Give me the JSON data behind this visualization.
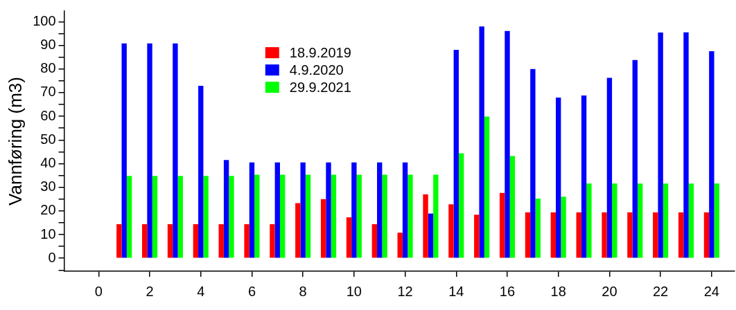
{
  "chart_data": {
    "type": "bar",
    "ylabel": "Vannføring (m3)",
    "x": [
      1,
      2,
      3,
      4,
      5,
      6,
      7,
      8,
      9,
      10,
      11,
      12,
      13,
      14,
      15,
      16,
      17,
      18,
      19,
      20,
      21,
      22,
      23,
      24
    ],
    "series": [
      {
        "name": "18.9.2019",
        "color": "#ff0000",
        "values": [
          14.4,
          14.4,
          14.4,
          14.4,
          14.4,
          14.4,
          14.4,
          23.3,
          25.0,
          17.3,
          14.4,
          10.8,
          27.0,
          22.8,
          18.4,
          27.6,
          19.4,
          19.4,
          19.4,
          19.4,
          19.4,
          19.4,
          19.4,
          19.4
        ]
      },
      {
        "name": "4.9.2020",
        "color": "#0000ff",
        "values": [
          90.8,
          90.8,
          90.8,
          72.9,
          41.5,
          40.5,
          40.5,
          40.5,
          40.5,
          40.5,
          40.5,
          40.5,
          18.9,
          88.1,
          98.0,
          96.1,
          80.0,
          67.9,
          68.8,
          76.3,
          83.8,
          95.4,
          95.5,
          87.5
        ]
      },
      {
        "name": "29.9.2021",
        "color": "#00ff00",
        "values": [
          34.8,
          34.8,
          34.8,
          34.8,
          34.8,
          35.3,
          35.3,
          35.3,
          35.3,
          35.3,
          35.3,
          35.3,
          35.3,
          44.4,
          59.9,
          43.2,
          25.2,
          26.0,
          31.6,
          31.6,
          31.6,
          31.6,
          31.6,
          31.6
        ]
      }
    ],
    "xlim": [
      -1.35,
      24.9
    ],
    "xticks": [
      0,
      2,
      4,
      6,
      8,
      10,
      12,
      14,
      16,
      18,
      20,
      22,
      24
    ],
    "ylim": [
      -5.5,
      104.5
    ],
    "yticks": [
      {
        "value": -5,
        "label": null
      },
      0,
      {
        "value": 5,
        "label": null
      },
      10,
      {
        "value": 15,
        "label": null
      },
      20,
      {
        "value": 25,
        "label": null
      },
      30,
      {
        "value": 35,
        "label": null
      },
      40,
      {
        "value": 45,
        "label": null
      },
      50,
      {
        "value": 55,
        "label": null
      },
      60,
      {
        "value": 65,
        "label": null
      },
      70,
      {
        "value": 75,
        "label": null
      },
      80,
      {
        "value": 85,
        "label": null
      },
      90,
      {
        "value": 95,
        "label": null
      },
      100
    ],
    "grid": false,
    "legend": "top"
  }
}
